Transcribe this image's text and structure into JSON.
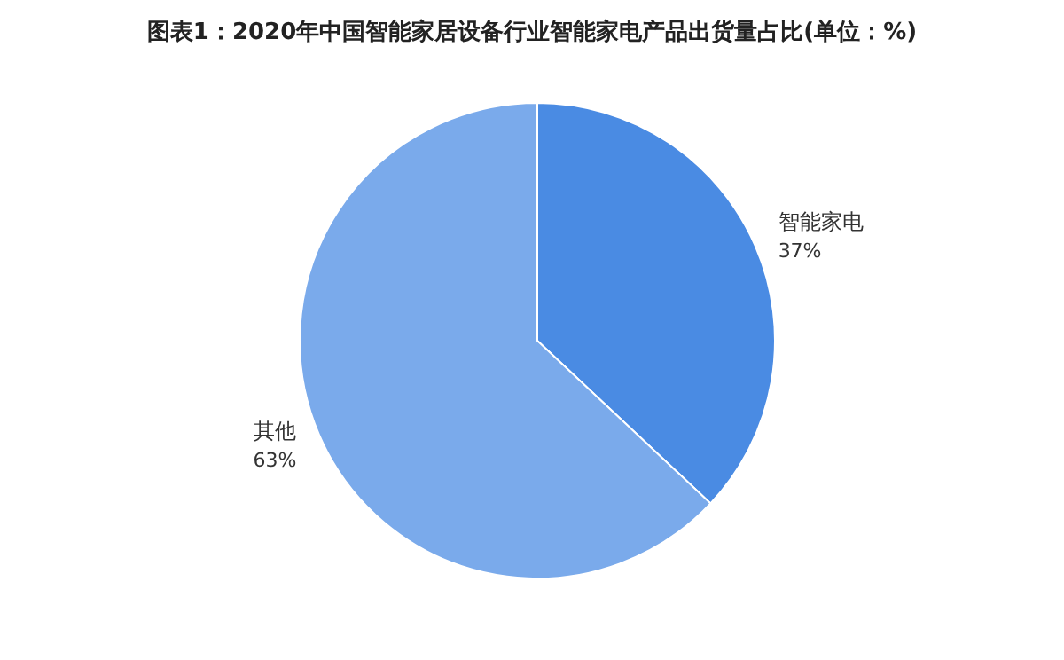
{
  "chart_data": {
    "type": "pie",
    "title": "图表1：2020年中国智能家居设备行业智能家电产品出货量占比(单位：%)",
    "categories": [
      "智能家电",
      "其他"
    ],
    "values": [
      37,
      63
    ],
    "colors": [
      "#4a8be3",
      "#7aaaeb"
    ],
    "value_labels": [
      "37%",
      "63%"
    ]
  }
}
